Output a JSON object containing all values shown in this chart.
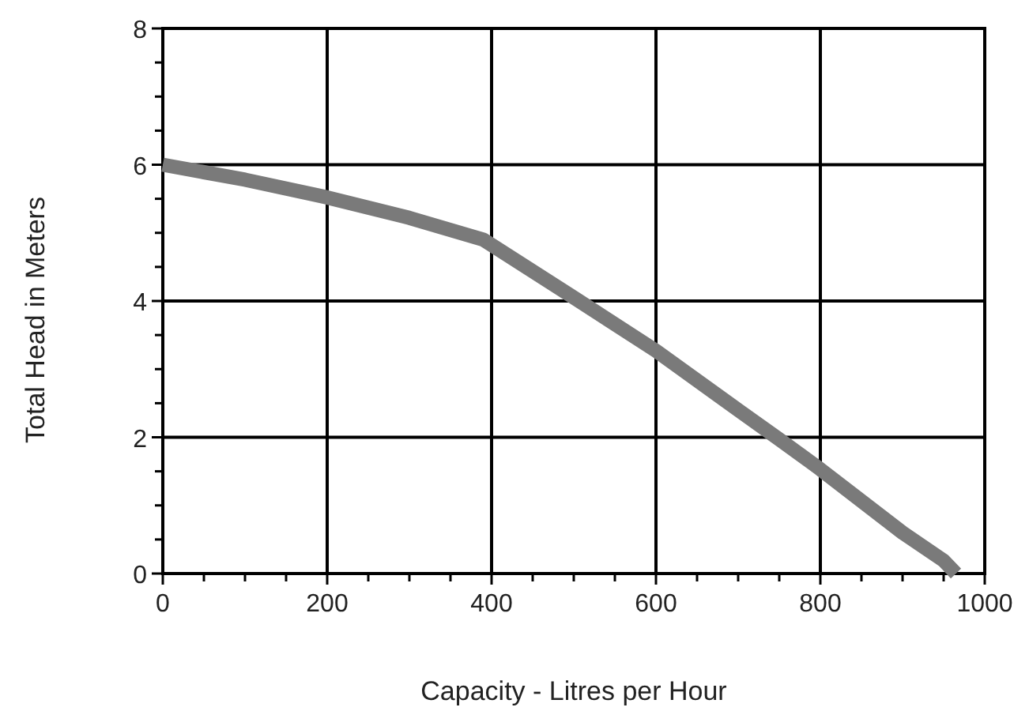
{
  "chart_data": {
    "type": "line",
    "xlabel": "Capacity - Litres per Hour",
    "ylabel": "Total Head in Meters",
    "x": [
      0,
      100,
      200,
      300,
      390,
      500,
      600,
      700,
      750,
      800,
      900,
      950,
      965
    ],
    "series": [
      {
        "color": "#7a7a7a",
        "values": [
          6.0,
          5.78,
          5.52,
          5.22,
          4.9,
          4.05,
          3.27,
          2.4,
          1.97,
          1.53,
          0.6,
          0.19,
          0
        ]
      }
    ],
    "xlim": [
      0,
      1000
    ],
    "ylim": [
      0,
      8
    ],
    "xticks": [
      0,
      {
        "value": 50,
        "label": null
      },
      {
        "value": 100,
        "label": null
      },
      {
        "value": 150,
        "label": null
      },
      200,
      {
        "value": 250,
        "label": null
      },
      {
        "value": 300,
        "label": null
      },
      {
        "value": 350,
        "label": null
      },
      400,
      {
        "value": 450,
        "label": null
      },
      {
        "value": 500,
        "label": null
      },
      {
        "value": 550,
        "label": null
      },
      600,
      {
        "value": 650,
        "label": null
      },
      {
        "value": 700,
        "label": null
      },
      {
        "value": 750,
        "label": null
      },
      800,
      {
        "value": 850,
        "label": null
      },
      {
        "value": 900,
        "label": null
      },
      {
        "value": 950,
        "label": null
      },
      1000
    ],
    "yticks": [
      0,
      {
        "value": 0.5,
        "label": null
      },
      {
        "value": 1,
        "label": null
      },
      {
        "value": 1.5,
        "label": null
      },
      2,
      {
        "value": 2.5,
        "label": null
      },
      {
        "value": 3,
        "label": null
      },
      {
        "value": 3.5,
        "label": null
      },
      4,
      {
        "value": 4.5,
        "label": null
      },
      {
        "value": 5,
        "label": null
      },
      {
        "value": 5.5,
        "label": null
      },
      6,
      {
        "value": 6.5,
        "label": null
      },
      {
        "value": 7,
        "label": null
      },
      {
        "value": 7.5,
        "label": null
      },
      8
    ],
    "grid": true,
    "marker": "none",
    "line_style": "solid"
  }
}
